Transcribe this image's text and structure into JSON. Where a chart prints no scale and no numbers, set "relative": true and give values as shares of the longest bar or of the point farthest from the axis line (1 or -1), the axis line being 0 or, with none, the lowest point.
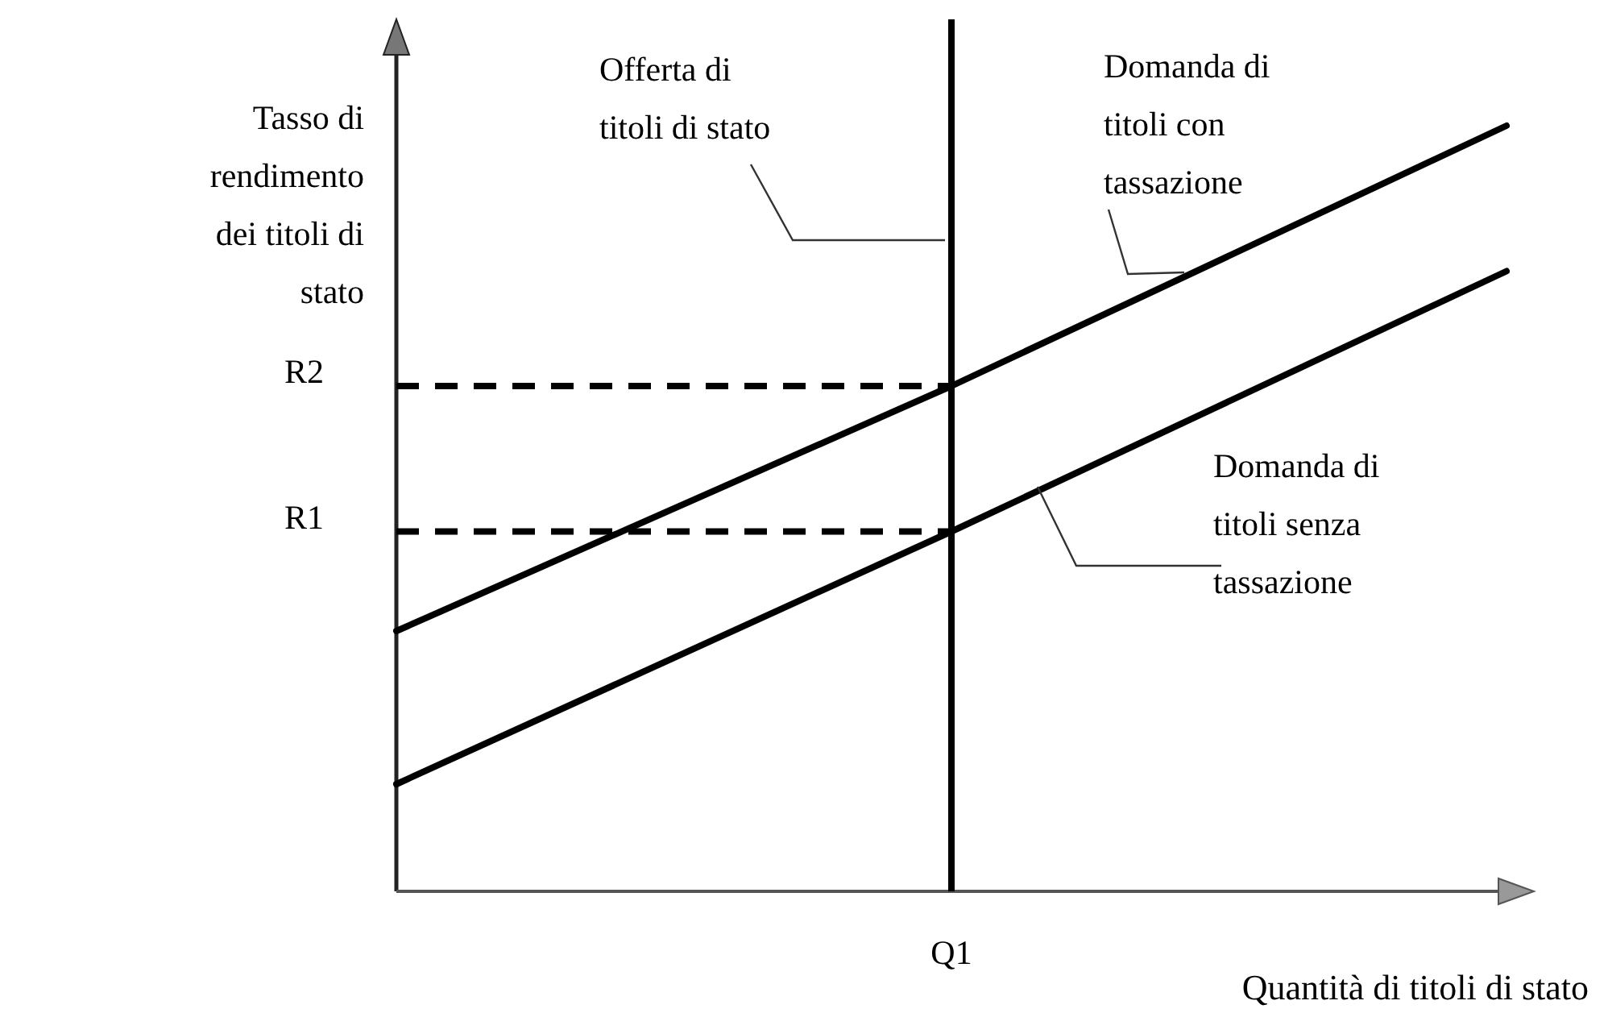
{
  "chart_data": {
    "type": "line",
    "relative": true,
    "xlabel": "Quantità di titoli di stato",
    "ylabel": "Tasso di rendimento dei titoli di stato",
    "categories": [
      null,
      null,
      null
    ],
    "series": [
      {
        "name": "Domanda di titoli con tassazione",
        "color": "#000000",
        "values": [
          0.34,
          0.66,
          1
        ]
      },
      {
        "name": "Domanda di titoli senza tassazione",
        "color": "#000000",
        "values": [
          0.14,
          0.47,
          0.81
        ]
      }
    ],
    "ref_lines": [
      {
        "axis": "x",
        "value": "Q1",
        "label": "Offerta di titoli di stato",
        "color": "#000000",
        "line_style": "solid"
      },
      {
        "axis": "y",
        "value": 0.66,
        "label": "R2",
        "color": "#000000",
        "line_style": "dashed"
      },
      {
        "axis": "y",
        "value": 0.47,
        "label": "R1",
        "color": "#000000",
        "line_style": "dashed"
      }
    ],
    "line_style": "solid",
    "marker": "none",
    "grid": false,
    "legend": false
  }
}
